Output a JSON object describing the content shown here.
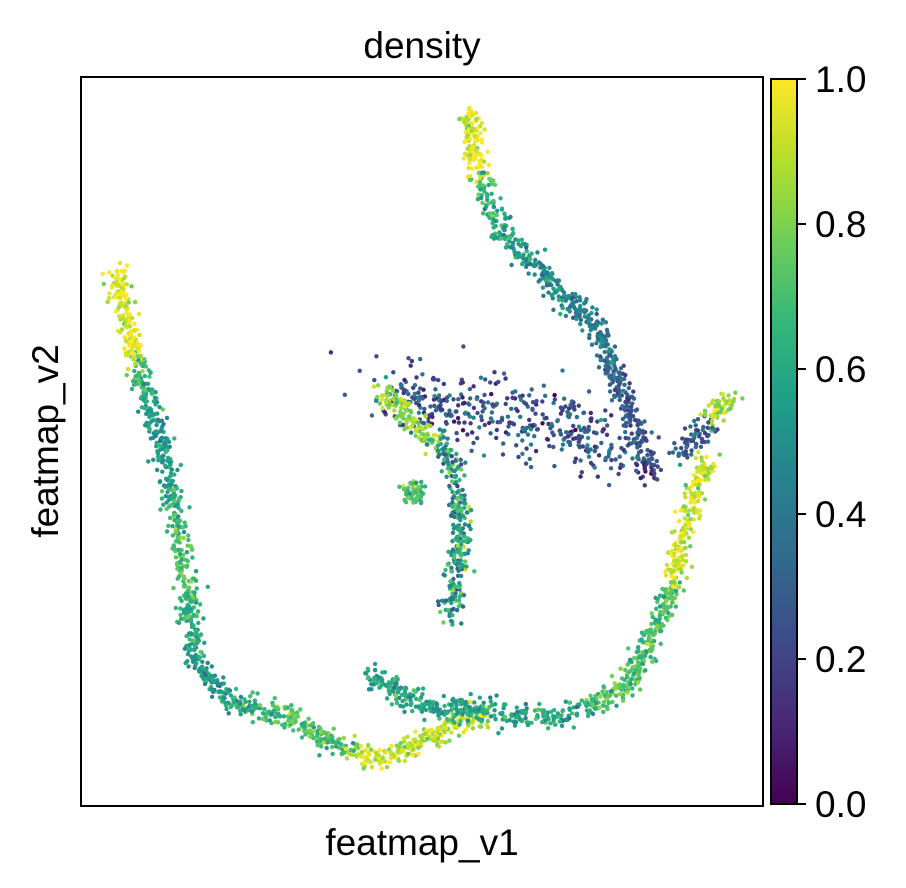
{
  "chart_data": {
    "type": "scatter",
    "title": "density",
    "xlabel": "featmap_v1",
    "ylabel": "featmap_v2",
    "x_ticks": [],
    "y_ticks": [],
    "grid": false,
    "legend": "none",
    "colormap": "viridis",
    "colormap_stops": [
      "#440154",
      "#482878",
      "#3e4a89",
      "#31688e",
      "#26828e",
      "#1f9e89",
      "#35b779",
      "#6ece58",
      "#b5de2b",
      "#fde725"
    ],
    "colorbar": {
      "label": "",
      "range": [
        0.0,
        1.0
      ],
      "ticks": [
        0.0,
        0.2,
        0.4,
        0.6,
        0.8,
        1.0
      ],
      "tick_labels": [
        "0.0",
        "0.2",
        "0.4",
        "0.6",
        "0.8",
        "1.0"
      ]
    },
    "point_count_estimate": 5000,
    "structure": [
      {
        "name": "left arm",
        "path": [
          [
            0.05,
            0.73
          ],
          [
            0.08,
            0.62
          ],
          [
            0.12,
            0.49
          ],
          [
            0.15,
            0.34
          ],
          [
            0.17,
            0.2
          ],
          [
            0.22,
            0.14
          ],
          [
            0.3,
            0.125
          ],
          [
            0.36,
            0.09
          ],
          [
            0.44,
            0.06
          ],
          [
            0.5,
            0.09
          ],
          [
            0.6,
            0.13
          ]
        ],
        "density_trend": "high at tip, mid along arm, high near bottom junction"
      },
      {
        "name": "bottom loop",
        "path": [
          [
            0.42,
            0.18
          ],
          [
            0.5,
            0.14
          ],
          [
            0.58,
            0.13
          ],
          [
            0.7,
            0.12
          ],
          [
            0.8,
            0.16
          ],
          [
            0.86,
            0.28
          ],
          [
            0.89,
            0.4
          ],
          [
            0.92,
            0.48
          ]
        ],
        "density_trend": "mostly 0.5-0.7 with yellow clusters near right side"
      },
      {
        "name": "top arm",
        "path": [
          [
            0.57,
            0.95
          ],
          [
            0.58,
            0.88
          ],
          [
            0.62,
            0.78
          ],
          [
            0.69,
            0.72
          ],
          [
            0.76,
            0.65
          ],
          [
            0.8,
            0.55
          ],
          [
            0.84,
            0.45
          ]
        ],
        "density_trend": "high at tip, decreasing toward junction"
      },
      {
        "name": "central hub",
        "path": [
          [
            0.44,
            0.57
          ],
          [
            0.52,
            0.55
          ],
          [
            0.62,
            0.54
          ],
          [
            0.72,
            0.52
          ],
          [
            0.8,
            0.47
          ]
        ],
        "density_trend": "low, 0.1-0.4"
      },
      {
        "name": "middle branch",
        "path": [
          [
            0.44,
            0.57
          ],
          [
            0.54,
            0.48
          ],
          [
            0.56,
            0.38
          ],
          [
            0.54,
            0.26
          ]
        ],
        "density_trend": "mixed 0.3-0.8"
      },
      {
        "name": "right spur",
        "path": [
          [
            0.88,
            0.48
          ],
          [
            0.94,
            0.55
          ],
          [
            0.96,
            0.56
          ]
        ],
        "density_trend": "mid to high at tip"
      },
      {
        "name": "isolated cluster",
        "path": [
          [
            0.49,
            0.43
          ]
        ],
        "density_trend": "0.7"
      }
    ]
  }
}
